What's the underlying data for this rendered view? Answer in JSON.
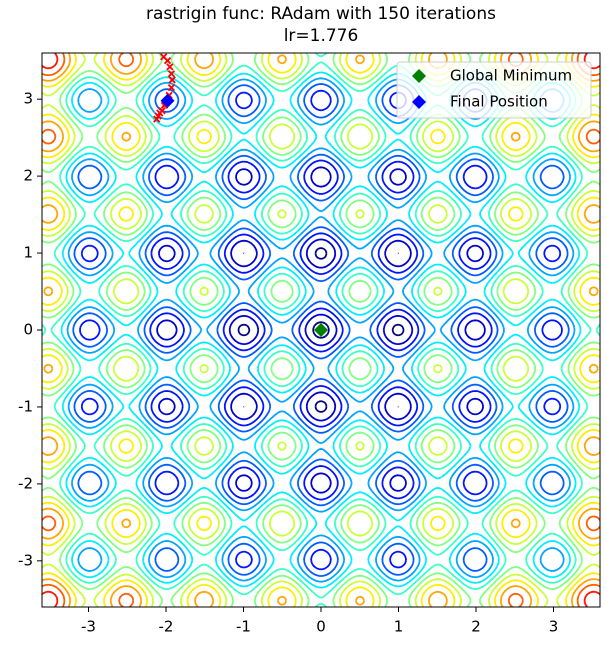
{
  "chart_data": {
    "type": "contour",
    "title": "rastrigin func: RAdam with 150 iterations",
    "subtitle": "lr=1.776",
    "colormap": "jet",
    "levels": [
      2,
      7,
      12,
      17,
      22,
      27,
      32,
      37,
      42,
      47,
      52,
      57,
      62,
      67,
      72
    ],
    "xlim": [
      -3.6,
      3.6
    ],
    "ylim": [
      -3.6,
      3.6
    ],
    "xticks": [
      -3,
      -2,
      -1,
      0,
      1,
      2,
      3
    ],
    "yticks": [
      -3,
      -2,
      -1,
      0,
      1,
      2,
      3
    ],
    "trajectory": {
      "color": "red",
      "x": [
        -2.03,
        -1.98,
        -1.95,
        -1.93,
        -1.92,
        -1.93,
        -1.96,
        -2.0,
        -2.05,
        -2.1,
        -2.12,
        -2.08,
        -2.02,
        -1.99
      ],
      "y": [
        3.55,
        3.5,
        3.42,
        3.33,
        3.25,
        3.15,
        3.05,
        2.95,
        2.85,
        2.78,
        2.74,
        2.82,
        2.92,
        2.98
      ]
    },
    "series": [
      {
        "name": "Global Minimum",
        "color": "green",
        "x": [
          0
        ],
        "y": [
          0
        ]
      },
      {
        "name": "Final Position",
        "color": "blue",
        "x": [
          -1.98
        ],
        "y": [
          2.98
        ]
      }
    ],
    "legend": "upper right"
  }
}
